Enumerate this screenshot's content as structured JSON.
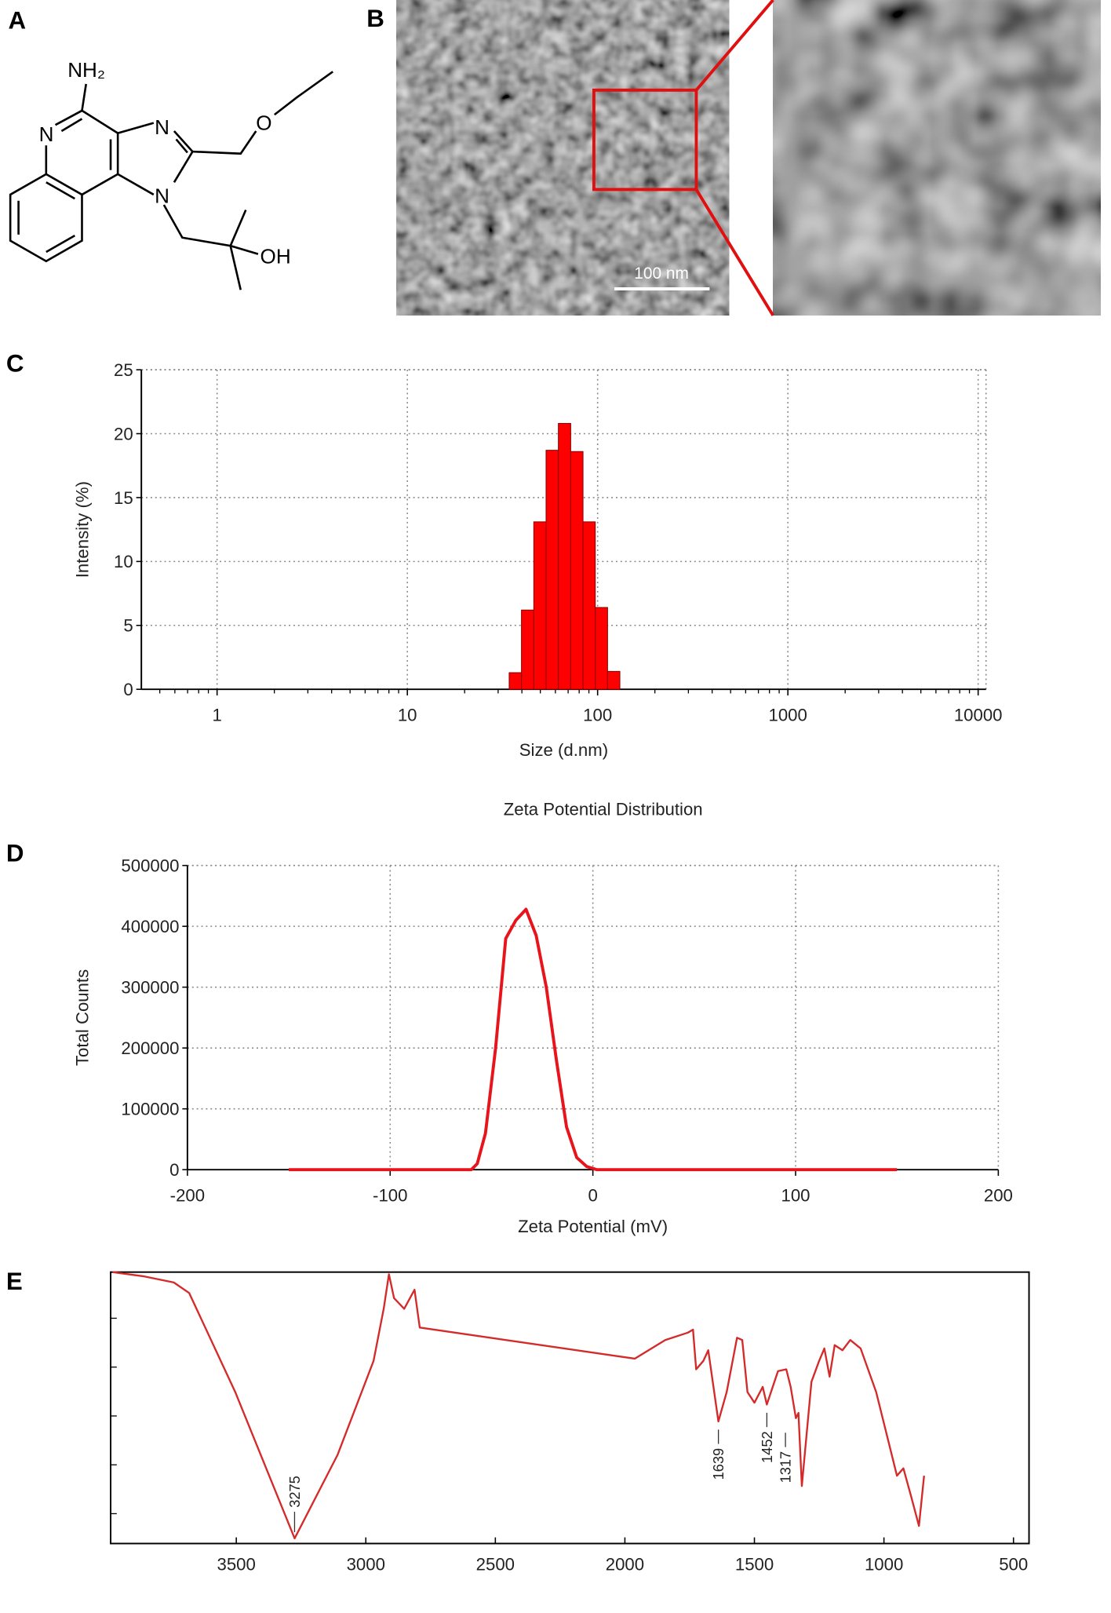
{
  "panel_labels": [
    "A",
    "B",
    "C",
    "D",
    "E"
  ],
  "structure": {
    "atoms": [
      "NH₂",
      "N",
      "N",
      "N",
      "O",
      "OH"
    ]
  },
  "micrograph": {
    "scale_bar": "100 nm"
  },
  "chart_data": [
    {
      "type": "histogram",
      "x_label": "Size (d.nm)",
      "y_label": "Intensity (%)",
      "bins": [
        34.3,
        39.8,
        46.2,
        53.6,
        62.2,
        72.2,
        83.8,
        97.2,
        112.8,
        130.9
      ],
      "values": [
        1.3,
        6.2,
        13.1,
        18.7,
        20.8,
        18.6,
        13.1,
        6.4,
        1.4
      ],
      "color": "#ff0000",
      "log_x": true,
      "xlim": [
        0.4,
        11000
      ],
      "xticks": [
        1,
        10,
        100,
        1000,
        10000
      ],
      "ylim": [
        0,
        25
      ],
      "yticks": [
        0,
        5,
        10,
        15,
        20,
        25
      ],
      "grid": true
    },
    {
      "type": "line",
      "title": "Zeta Potential Distribution",
      "x_label": "Zeta Potential (mV)",
      "y_label": "Total Counts",
      "x": [
        -150,
        -60,
        -57,
        -53,
        -48,
        -43,
        -38,
        -33,
        -28,
        -23,
        -18,
        -13,
        -8,
        -3,
        2,
        150
      ],
      "values": [
        0,
        0,
        10000,
        60000,
        200000,
        380000,
        410000,
        428000,
        385000,
        300000,
        180000,
        70000,
        20000,
        5000,
        0,
        0
      ],
      "color": "#e8141c",
      "xlim": [
        -200,
        200
      ],
      "xticks": [
        -200,
        -100,
        0,
        100,
        200
      ],
      "ylim": [
        0,
        500000
      ],
      "yticks": [
        0,
        100000,
        200000,
        300000,
        400000,
        500000
      ],
      "grid": true
    },
    {
      "type": "line",
      "x": [
        3978,
        3860,
        3741,
        3682,
        3504,
        3275,
        3109,
        2970,
        2931,
        2911,
        2891,
        2852,
        2812,
        2792,
        1962,
        1844,
        1757,
        1737,
        1725,
        1697,
        1678,
        1639,
        1607,
        1567,
        1547,
        1527,
        1500,
        1468,
        1452,
        1409,
        1377,
        1360,
        1340,
        1330,
        1317,
        1280,
        1250,
        1230,
        1210,
        1190,
        1160,
        1130,
        1090,
        1030,
        950,
        925,
        895,
        865,
        845
      ],
      "values": [
        100,
        98.5,
        96.2,
        92.3,
        55.8,
        1.9,
        32.7,
        67.3,
        86.5,
        99.2,
        90.4,
        86.5,
        93.5,
        79.6,
        68.1,
        75,
        77.7,
        78.8,
        64.2,
        67.3,
        71.2,
        45,
        55.8,
        75.8,
        75,
        55.8,
        51.9,
        57.7,
        51.2,
        63.5,
        64.2,
        57.7,
        46.2,
        48.1,
        21.2,
        59.6,
        67.3,
        71.9,
        61.5,
        73.1,
        71.2,
        75,
        71.9,
        55.8,
        25,
        27.7,
        17.3,
        6.5,
        25
      ],
      "color": "#d42a2a",
      "xlim": [
        3985,
        440
      ],
      "xticks": [
        3500,
        3000,
        2500,
        2000,
        1500,
        1000,
        500
      ],
      "ylim": [
        0,
        100
      ],
      "grid": false,
      "peak_labels": [
        3275,
        1639,
        1452,
        1317
      ]
    }
  ]
}
